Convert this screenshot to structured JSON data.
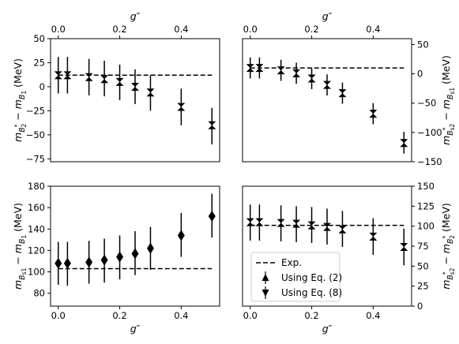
{
  "chart_data": [
    {
      "id": "p1",
      "type": "scatter",
      "xlabel": "g″",
      "xlabel_position": "top",
      "ylabel": "m_{B_2^*} − m_{B_1} (MeV)",
      "ylabel_side": "left",
      "xlim": [
        -0.025,
        0.525
      ],
      "ylim": [
        -78,
        50
      ],
      "xticks": [
        0.0,
        0.2,
        0.4
      ],
      "xtick_labels": [
        "0.0",
        "0.2",
        "0.4"
      ],
      "yticks": [
        -75,
        -50,
        -25,
        0,
        25,
        50
      ],
      "ytick_labels": [
        "−75",
        "−50",
        "−25",
        "0",
        "25",
        "50"
      ],
      "exp": 12,
      "marker": "hourglass",
      "points": [
        {
          "x": 0.0,
          "y": 12,
          "lo": -7,
          "hi": 31
        },
        {
          "x": 0.03,
          "y": 12,
          "lo": -7,
          "hi": 31
        },
        {
          "x": 0.1,
          "y": 10,
          "lo": -9,
          "hi": 29
        },
        {
          "x": 0.15,
          "y": 8,
          "lo": -10,
          "hi": 27
        },
        {
          "x": 0.2,
          "y": 5,
          "lo": -14,
          "hi": 23
        },
        {
          "x": 0.25,
          "y": 0,
          "lo": -18,
          "hi": 18
        },
        {
          "x": 0.3,
          "y": -6,
          "lo": -25,
          "hi": 12
        },
        {
          "x": 0.4,
          "y": -21,
          "lo": -40,
          "hi": -2
        },
        {
          "x": 0.5,
          "y": -40,
          "lo": -60,
          "hi": -22
        }
      ]
    },
    {
      "id": "p2",
      "type": "scatter",
      "xlabel": "g″",
      "xlabel_position": "top",
      "ylabel": "m_{B_{s2}^*} − m_{B_{s1}} (MeV)",
      "ylabel_side": "right",
      "xlim": [
        -0.025,
        0.525
      ],
      "ylim": [
        -150,
        60
      ],
      "xticks": [
        0.0,
        0.2,
        0.4
      ],
      "xtick_labels": [
        "0.0",
        "0.2",
        "0.4"
      ],
      "yticks": [
        -150,
        -100,
        -50,
        0,
        50
      ],
      "ytick_labels": [
        "−150",
        "−100",
        "−50",
        "0",
        "50"
      ],
      "exp": 10,
      "marker": "hourglass",
      "points": [
        {
          "x": 0.0,
          "y": 10,
          "lo": -8,
          "hi": 28
        },
        {
          "x": 0.03,
          "y": 10,
          "lo": -8,
          "hi": 28
        },
        {
          "x": 0.1,
          "y": 6,
          "lo": -12,
          "hi": 24
        },
        {
          "x": 0.15,
          "y": 1,
          "lo": -17,
          "hi": 19
        },
        {
          "x": 0.2,
          "y": -8,
          "lo": -26,
          "hi": 10
        },
        {
          "x": 0.25,
          "y": -19,
          "lo": -37,
          "hi": -1
        },
        {
          "x": 0.3,
          "y": -33,
          "lo": -51,
          "hi": -15
        },
        {
          "x": 0.4,
          "y": -68,
          "lo": -86,
          "hi": -50
        },
        {
          "x": 0.5,
          "y": -118,
          "lo": -136,
          "hi": -99
        }
      ]
    },
    {
      "id": "p3",
      "type": "scatter",
      "xlabel": "g″",
      "xlabel_position": "bottom",
      "ylabel": "m_{B_{s1}} − m_{B_1} (MeV)",
      "ylabel_side": "left",
      "xlim": [
        -0.025,
        0.525
      ],
      "ylim": [
        68,
        180
      ],
      "xticks": [
        0.0,
        0.2,
        0.4
      ],
      "xtick_labels": [
        "0.0",
        "0.2",
        "0.4"
      ],
      "yticks": [
        80,
        100,
        120,
        140,
        160,
        180
      ],
      "ytick_labels": [
        "80",
        "100",
        "120",
        "140",
        "160",
        "180"
      ],
      "exp": 103,
      "marker": "diamond",
      "points": [
        {
          "x": 0.0,
          "y": 108,
          "lo": 88,
          "hi": 128
        },
        {
          "x": 0.03,
          "y": 108,
          "lo": 87,
          "hi": 128
        },
        {
          "x": 0.1,
          "y": 109,
          "lo": 89,
          "hi": 129
        },
        {
          "x": 0.15,
          "y": 111,
          "lo": 90,
          "hi": 131
        },
        {
          "x": 0.2,
          "y": 114,
          "lo": 93,
          "hi": 134
        },
        {
          "x": 0.25,
          "y": 117,
          "lo": 97,
          "hi": 138
        },
        {
          "x": 0.3,
          "y": 122,
          "lo": 102,
          "hi": 142
        },
        {
          "x": 0.4,
          "y": 134,
          "lo": 114,
          "hi": 155
        },
        {
          "x": 0.5,
          "y": 152,
          "lo": 132,
          "hi": 173
        }
      ]
    },
    {
      "id": "p4",
      "type": "scatter",
      "xlabel": "g″",
      "xlabel_position": "bottom",
      "ylabel": "m_{B_{s2}^*} − m_{B_2^*} (MeV)",
      "ylabel_side": "right",
      "xlim": [
        -0.025,
        0.525
      ],
      "ylim": [
        0,
        150
      ],
      "xticks": [
        0.0,
        0.2,
        0.4
      ],
      "xtick_labels": [
        "0.0",
        "0.2",
        "0.4"
      ],
      "yticks": [
        0,
        25,
        50,
        75,
        100,
        125,
        150
      ],
      "ytick_labels": [
        "0",
        "25",
        "50",
        "75",
        "100",
        "125",
        "150"
      ],
      "exp": 101,
      "marker": "hourglass",
      "points": [
        {
          "x": 0.0,
          "y": 105,
          "lo": 82,
          "hi": 127
        },
        {
          "x": 0.03,
          "y": 105,
          "lo": 82,
          "hi": 127
        },
        {
          "x": 0.1,
          "y": 104,
          "lo": 81,
          "hi": 126
        },
        {
          "x": 0.15,
          "y": 103,
          "lo": 80,
          "hi": 125
        },
        {
          "x": 0.2,
          "y": 101,
          "lo": 79,
          "hi": 124
        },
        {
          "x": 0.25,
          "y": 99,
          "lo": 77,
          "hi": 122
        },
        {
          "x": 0.3,
          "y": 96,
          "lo": 74,
          "hi": 119
        },
        {
          "x": 0.4,
          "y": 87,
          "lo": 64,
          "hi": 110
        },
        {
          "x": 0.5,
          "y": 74,
          "lo": 51,
          "hi": 97
        }
      ],
      "legend": {
        "placement": "lower-left",
        "entries": [
          {
            "label": "Exp.",
            "symbol": "dashed-line"
          },
          {
            "label": "Using Eq. (2)",
            "symbol": "triangle-up"
          },
          {
            "label": "Using Eq. (8)",
            "symbol": "triangle-down"
          }
        ]
      }
    }
  ]
}
